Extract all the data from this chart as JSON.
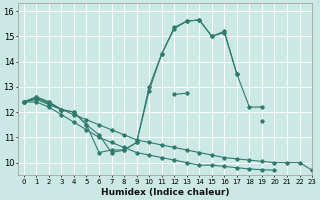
{
  "xlabel": "Humidex (Indice chaleur)",
  "xlim": [
    -0.5,
    23
  ],
  "ylim": [
    9.5,
    16.3
  ],
  "xticks": [
    0,
    1,
    2,
    3,
    4,
    5,
    6,
    7,
    8,
    9,
    10,
    11,
    12,
    13,
    14,
    15,
    16,
    17,
    18,
    19,
    20,
    21,
    22,
    23
  ],
  "yticks": [
    10,
    11,
    12,
    13,
    14,
    15,
    16
  ],
  "bg_color": "#cce8e4",
  "line_color": "#2e7b6e",
  "grid_color": "#ffffff",
  "series": [
    {
      "x": [
        0,
        1,
        2,
        3,
        4,
        5,
        6,
        7,
        8,
        9,
        10,
        11,
        12,
        13,
        14,
        15,
        16,
        17,
        18,
        19,
        20,
        21,
        22,
        23
      ],
      "y": [
        12.4,
        12.6,
        12.4,
        12.1,
        12.0,
        11.5,
        10.4,
        10.5,
        10.5,
        10.8,
        13.0,
        14.3,
        15.3,
        15.6,
        15.65,
        15.0,
        15.2,
        13.5,
        12.2,
        12.2,
        null,
        null,
        null,
        null
      ]
    },
    {
      "x": [
        0,
        1,
        2,
        3,
        4,
        5,
        6,
        7,
        8,
        9,
        10,
        11,
        12,
        13,
        14,
        15,
        16,
        17,
        18,
        19,
        20,
        21,
        22,
        23
      ],
      "y": [
        12.4,
        12.6,
        12.4,
        12.1,
        12.0,
        11.5,
        11.1,
        10.4,
        10.5,
        10.8,
        12.85,
        14.3,
        15.35,
        15.6,
        15.65,
        15.0,
        15.15,
        13.5,
        null,
        null,
        null,
        null,
        null,
        null
      ]
    },
    {
      "x": [
        0,
        1,
        2,
        3,
        4,
        5,
        6,
        7,
        8,
        9,
        10,
        11,
        12,
        13,
        14,
        15,
        16,
        17,
        18,
        19,
        20,
        21,
        22,
        23
      ],
      "y": [
        12.4,
        12.55,
        12.35,
        12.1,
        null,
        null,
        null,
        null,
        null,
        null,
        null,
        null,
        12.7,
        12.75,
        null,
        null,
        null,
        null,
        null,
        11.65,
        null,
        null,
        null,
        null
      ]
    },
    {
      "x": [
        0,
        1,
        2,
        3,
        4,
        5,
        6,
        7,
        8,
        9,
        10,
        11,
        12,
        13,
        14,
        15,
        16,
        17,
        18,
        19,
        20,
        21,
        22,
        23
      ],
      "y": [
        12.4,
        12.5,
        12.3,
        12.1,
        11.9,
        11.7,
        11.5,
        11.3,
        11.1,
        10.9,
        10.8,
        10.7,
        10.6,
        10.5,
        10.4,
        10.3,
        10.2,
        10.15,
        10.1,
        10.05,
        10.0,
        10.0,
        10.0,
        9.7
      ]
    },
    {
      "x": [
        0,
        1,
        2,
        3,
        4,
        5,
        6,
        7,
        8,
        9,
        10,
        11,
        12,
        13,
        14,
        15,
        16,
        17,
        18,
        19,
        20,
        21,
        22,
        23
      ],
      "y": [
        12.4,
        12.4,
        12.2,
        11.9,
        11.6,
        11.3,
        11.0,
        10.8,
        10.6,
        10.4,
        10.3,
        10.2,
        10.1,
        10.0,
        9.9,
        9.9,
        9.85,
        9.8,
        9.75,
        9.72,
        9.7,
        null,
        null,
        null
      ]
    }
  ]
}
